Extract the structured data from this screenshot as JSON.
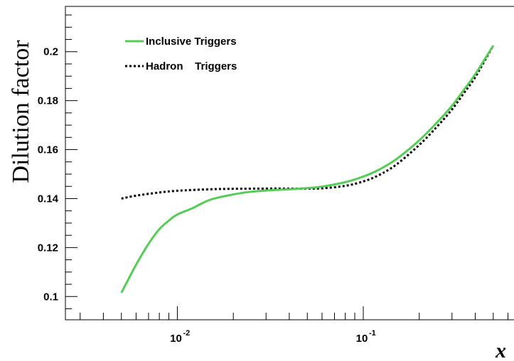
{
  "chart_data": {
    "type": "line",
    "xscale": "log",
    "xlabel": "x",
    "ylabel": "Dilution factor",
    "xlim": [
      0.0025,
      0.7
    ],
    "ylim": [
      0.0905,
      0.2185
    ],
    "x_tick_labels": [
      {
        "value": 0.01,
        "base": "10",
        "exp": "-2"
      },
      {
        "value": 0.1,
        "base": "10",
        "exp": "-1"
      }
    ],
    "y_ticks": [
      0.1,
      0.12,
      0.14,
      0.16,
      0.18,
      0.2
    ],
    "y_tick_labels": [
      "0.1",
      "0.12",
      "0.14",
      "0.16",
      "0.18",
      "0.2"
    ],
    "grid": false,
    "legend_position": "top-left",
    "series": [
      {
        "name": "Inclusive Triggers",
        "color": "#55cc55",
        "style": "solid",
        "x": [
          0.005,
          0.006,
          0.007,
          0.008,
          0.009,
          0.01,
          0.012,
          0.015,
          0.02,
          0.025,
          0.03,
          0.04,
          0.05,
          0.06,
          0.08,
          0.1,
          0.12,
          0.15,
          0.2,
          0.25,
          0.3,
          0.35,
          0.4,
          0.5
        ],
        "y": [
          0.1015,
          0.113,
          0.1215,
          0.1275,
          0.131,
          0.1335,
          0.136,
          0.1395,
          0.1417,
          0.1428,
          0.1433,
          0.1438,
          0.1443,
          0.1449,
          0.1467,
          0.149,
          0.1516,
          0.156,
          0.1638,
          0.1712,
          0.1779,
          0.1847,
          0.1908,
          0.2025
        ]
      },
      {
        "name": "Hadron    Triggers",
        "color": "#000000",
        "style": "dotted",
        "x": [
          0.005,
          0.006,
          0.008,
          0.01,
          0.015,
          0.02,
          0.03,
          0.04,
          0.05,
          0.06,
          0.08,
          0.1,
          0.12,
          0.15,
          0.2,
          0.25,
          0.3,
          0.35,
          0.4,
          0.5
        ],
        "y": [
          0.14,
          0.1412,
          0.1425,
          0.1432,
          0.1438,
          0.144,
          0.1441,
          0.1441,
          0.1441,
          0.1442,
          0.1452,
          0.147,
          0.1494,
          0.1538,
          0.1619,
          0.1695,
          0.1764,
          0.1834,
          0.1896,
          0.2025
        ]
      }
    ]
  }
}
